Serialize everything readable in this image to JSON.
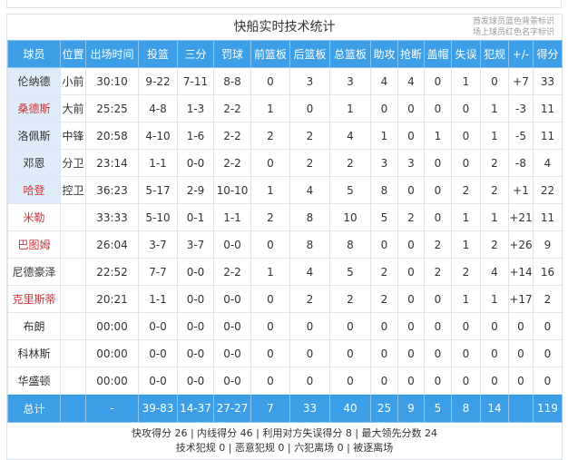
{
  "title": "快船实时技术统计",
  "legend": [
    "首发球员蓝色背景标识",
    "场上球员红色名字标识"
  ],
  "columns": [
    "球员",
    "位置",
    "出场时间",
    "投篮",
    "三分",
    "罚球",
    "前篮板",
    "后篮板",
    "总篮板",
    "助攻",
    "抢断",
    "盖帽",
    "失误",
    "犯规",
    "+/-",
    "得分"
  ],
  "players": [
    {
      "name": "伦纳德",
      "starter": true,
      "on_court": false,
      "stats": [
        "小前",
        "30:10",
        "9-22",
        "7-11",
        "8-8",
        "0",
        "3",
        "3",
        "4",
        "4",
        "0",
        "1",
        "0",
        "+7",
        "33"
      ]
    },
    {
      "name": "桑德斯",
      "starter": true,
      "on_court": true,
      "stats": [
        "大前",
        "25:25",
        "4-8",
        "1-3",
        "2-2",
        "1",
        "0",
        "1",
        "0",
        "0",
        "0",
        "0",
        "1",
        "-3",
        "11"
      ]
    },
    {
      "name": "洛佩斯",
      "starter": true,
      "on_court": false,
      "stats": [
        "中锋",
        "20:58",
        "4-10",
        "1-6",
        "2-2",
        "2",
        "2",
        "4",
        "1",
        "0",
        "1",
        "0",
        "1",
        "-5",
        "11"
      ]
    },
    {
      "name": "邓恩",
      "starter": true,
      "on_court": false,
      "stats": [
        "分卫",
        "23:14",
        "1-1",
        "0-0",
        "2-2",
        "0",
        "2",
        "2",
        "3",
        "3",
        "0",
        "0",
        "2",
        "-8",
        "4"
      ]
    },
    {
      "name": "哈登",
      "starter": true,
      "on_court": true,
      "stats": [
        "控卫",
        "36:23",
        "5-17",
        "2-9",
        "10-10",
        "1",
        "4",
        "5",
        "8",
        "0",
        "0",
        "2",
        "2",
        "+1",
        "22"
      ]
    },
    {
      "name": "米勒",
      "starter": false,
      "on_court": true,
      "stats": [
        "",
        "33:33",
        "5-10",
        "0-1",
        "1-1",
        "2",
        "8",
        "10",
        "5",
        "2",
        "0",
        "1",
        "1",
        "+21",
        "11"
      ]
    },
    {
      "name": "巴图姆",
      "starter": false,
      "on_court": true,
      "stats": [
        "",
        "26:04",
        "3-7",
        "3-7",
        "0-0",
        "0",
        "8",
        "8",
        "0",
        "0",
        "2",
        "1",
        "2",
        "+26",
        "9"
      ]
    },
    {
      "name": "尼德豪泽",
      "starter": false,
      "on_court": false,
      "stats": [
        "",
        "22:52",
        "7-7",
        "0-0",
        "2-2",
        "1",
        "4",
        "5",
        "2",
        "0",
        "2",
        "2",
        "4",
        "+14",
        "16"
      ]
    },
    {
      "name": "克里斯蒂",
      "starter": false,
      "on_court": true,
      "stats": [
        "",
        "20:21",
        "1-1",
        "0-0",
        "0-0",
        "0",
        "2",
        "2",
        "2",
        "0",
        "0",
        "1",
        "1",
        "+17",
        "2"
      ]
    },
    {
      "name": "布朗",
      "starter": false,
      "on_court": false,
      "stats": [
        "",
        "00:00",
        "0-0",
        "0-0",
        "0-0",
        "0",
        "0",
        "0",
        "0",
        "0",
        "0",
        "0",
        "0",
        "0",
        "0"
      ]
    },
    {
      "name": "科林斯",
      "starter": false,
      "on_court": false,
      "stats": [
        "",
        "00:00",
        "0-0",
        "0-0",
        "0-0",
        "0",
        "0",
        "0",
        "0",
        "0",
        "0",
        "0",
        "0",
        "0",
        "0"
      ]
    },
    {
      "name": "华盛顿",
      "starter": false,
      "on_court": false,
      "stats": [
        "",
        "00:00",
        "0-0",
        "0-0",
        "0-0",
        "0",
        "0",
        "0",
        "0",
        "0",
        "0",
        "0",
        "0",
        "0",
        "0"
      ]
    }
  ],
  "total": [
    "总计",
    "",
    "-",
    "39-83",
    "14-37",
    "27-27",
    "7",
    "33",
    "40",
    "25",
    "9",
    "5",
    "8",
    "14",
    "",
    "119"
  ],
  "footer": [
    "快攻得分 26 | 内线得分 46 | 利用对方失误得分 8 | 最大领先分数 24",
    "技术犯规 0 | 恶意犯规 0 | 六犯离场 0 | 被逐离场"
  ],
  "colors": {
    "header": "#3c9ee6",
    "starter_bg": "#deebf8",
    "on_court_name": "#d0343a"
  }
}
